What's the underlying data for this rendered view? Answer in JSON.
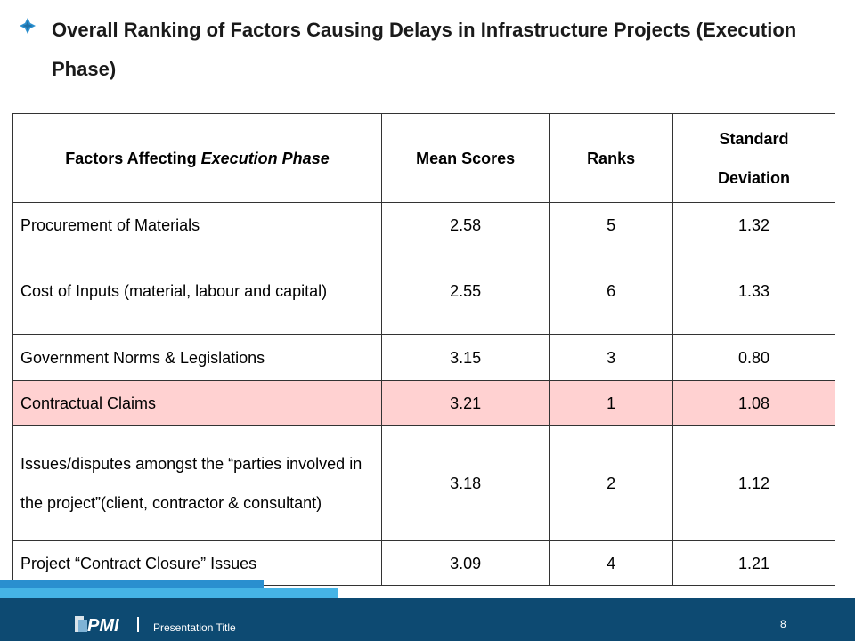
{
  "title": "Overall Ranking of Factors Causing Delays in Infrastructure Projects (Execution Phase)",
  "table": {
    "headers": {
      "factor_prefix": "Factors Affecting ",
      "factor_emph": "Execution Phase",
      "mean": "Mean Scores",
      "rank": "Ranks",
      "sd": "Standard Deviation"
    },
    "rows": [
      {
        "factor": "Procurement of Materials",
        "mean": "2.58",
        "rank": "5",
        "sd": "1.32"
      },
      {
        "factor": "Cost of Inputs (material, labour and capital)",
        "mean": "2.55",
        "rank": "6",
        "sd": "1.33"
      },
      {
        "factor": "Government Norms & Legislations",
        "mean": "3.15",
        "rank": "3",
        "sd": "0.80"
      },
      {
        "factor": "Contractual Claims",
        "mean": "3.21",
        "rank": "1",
        "sd": "1.08"
      },
      {
        "factor": "Issues/disputes amongst the “parties involved in the project”(client, contractor & consultant)",
        "mean": "3.18",
        "rank": "2",
        "sd": "1.12"
      },
      {
        "factor": "Project “Contract Closure” Issues",
        "mean": "3.09",
        "rank": "4",
        "sd": "1.21"
      }
    ],
    "highlight_color": "#ffd1d1"
  },
  "footer": {
    "presentation_title": "Presentation Title",
    "page_number": "8",
    "logo": "PMI"
  }
}
